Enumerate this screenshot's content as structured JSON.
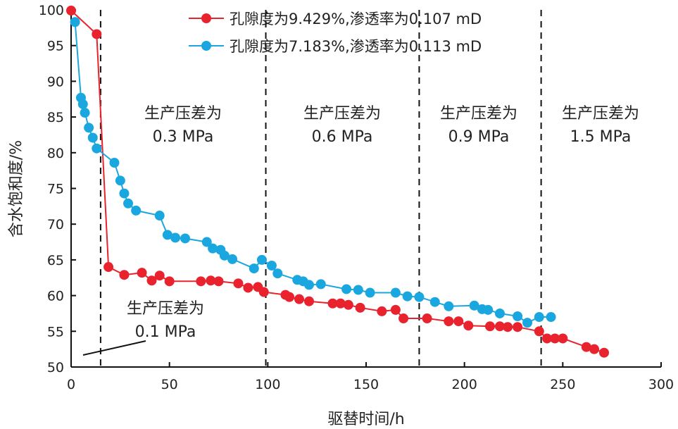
{
  "chart_data": {
    "type": "line",
    "xlabel": "驱替时间/h",
    "ylabel": "含水饱和度/%",
    "xlim": [
      0,
      300
    ],
    "ylim": [
      50,
      100
    ],
    "xticks": [
      "0",
      "50",
      "100",
      "150",
      "200",
      "250",
      "300"
    ],
    "yticks": [
      "50",
      "55",
      "60",
      "65",
      "70",
      "75",
      "80",
      "85",
      "90",
      "95",
      "100"
    ],
    "grid": false,
    "legend_position": "top-right",
    "stage_boundaries": [
      15,
      99,
      177,
      239
    ],
    "annotations": [
      {
        "line1": "生产压差为",
        "line2": "0.1 MPa"
      },
      {
        "line1": "生产压差为",
        "line2": "0.3 MPa"
      },
      {
        "line1": "生产压差为",
        "line2": "0.6 MPa"
      },
      {
        "line1": "生产压差为",
        "line2": "0.9 MPa"
      },
      {
        "line1": "生产压差为",
        "line2": "1.5 MPa"
      }
    ],
    "series": [
      {
        "name": "孔隙度为9.429%,渗透率为0.107 mD",
        "color": "#e8232e",
        "x": [
          0,
          13,
          19,
          27,
          36,
          41,
          45,
          50,
          66,
          71,
          75,
          85,
          90,
          95,
          98,
          109,
          111,
          116,
          121,
          133,
          137,
          141,
          147,
          158,
          165,
          169,
          181,
          192,
          197,
          202,
          213,
          218,
          222,
          227,
          238,
          242,
          246,
          250,
          262,
          266,
          271
        ],
        "y": [
          99.9,
          96.6,
          64.0,
          62.9,
          63.2,
          62.1,
          62.8,
          62.0,
          62.0,
          62.1,
          62.0,
          61.7,
          61.1,
          61.2,
          60.5,
          60.1,
          59.8,
          59.5,
          59.2,
          58.9,
          58.9,
          58.7,
          58.3,
          57.8,
          58.0,
          56.8,
          56.8,
          56.4,
          56.4,
          55.8,
          55.7,
          55.7,
          55.6,
          55.6,
          55.0,
          54.0,
          54.0,
          54.0,
          52.8,
          52.5,
          52.0
        ]
      },
      {
        "name": "孔隙度为7.183%,渗透率为0.113 mD",
        "color": "#1aa7e0",
        "x": [
          2,
          5,
          6,
          7,
          9,
          11,
          13,
          22,
          25,
          27,
          29,
          33,
          45,
          49,
          53,
          58,
          69,
          72,
          76,
          78,
          82,
          93,
          97,
          102,
          105,
          115,
          118,
          121,
          127,
          140,
          146,
          152,
          165,
          171,
          177,
          185,
          192,
          205,
          209,
          212,
          218,
          227,
          232,
          238,
          244
        ],
        "y": [
          98.3,
          87.7,
          86.8,
          85.6,
          83.5,
          82.1,
          80.6,
          78.6,
          76.1,
          74.3,
          72.9,
          71.9,
          71.2,
          68.5,
          68.1,
          68.0,
          67.5,
          66.6,
          66.4,
          65.6,
          65.1,
          63.8,
          65.0,
          64.2,
          63.1,
          62.2,
          62.0,
          61.5,
          61.6,
          60.9,
          60.8,
          60.4,
          60.4,
          59.9,
          59.8,
          59.1,
          58.5,
          58.6,
          58.1,
          58.0,
          57.5,
          57.1,
          56.2,
          57.0,
          57.0
        ]
      }
    ]
  }
}
